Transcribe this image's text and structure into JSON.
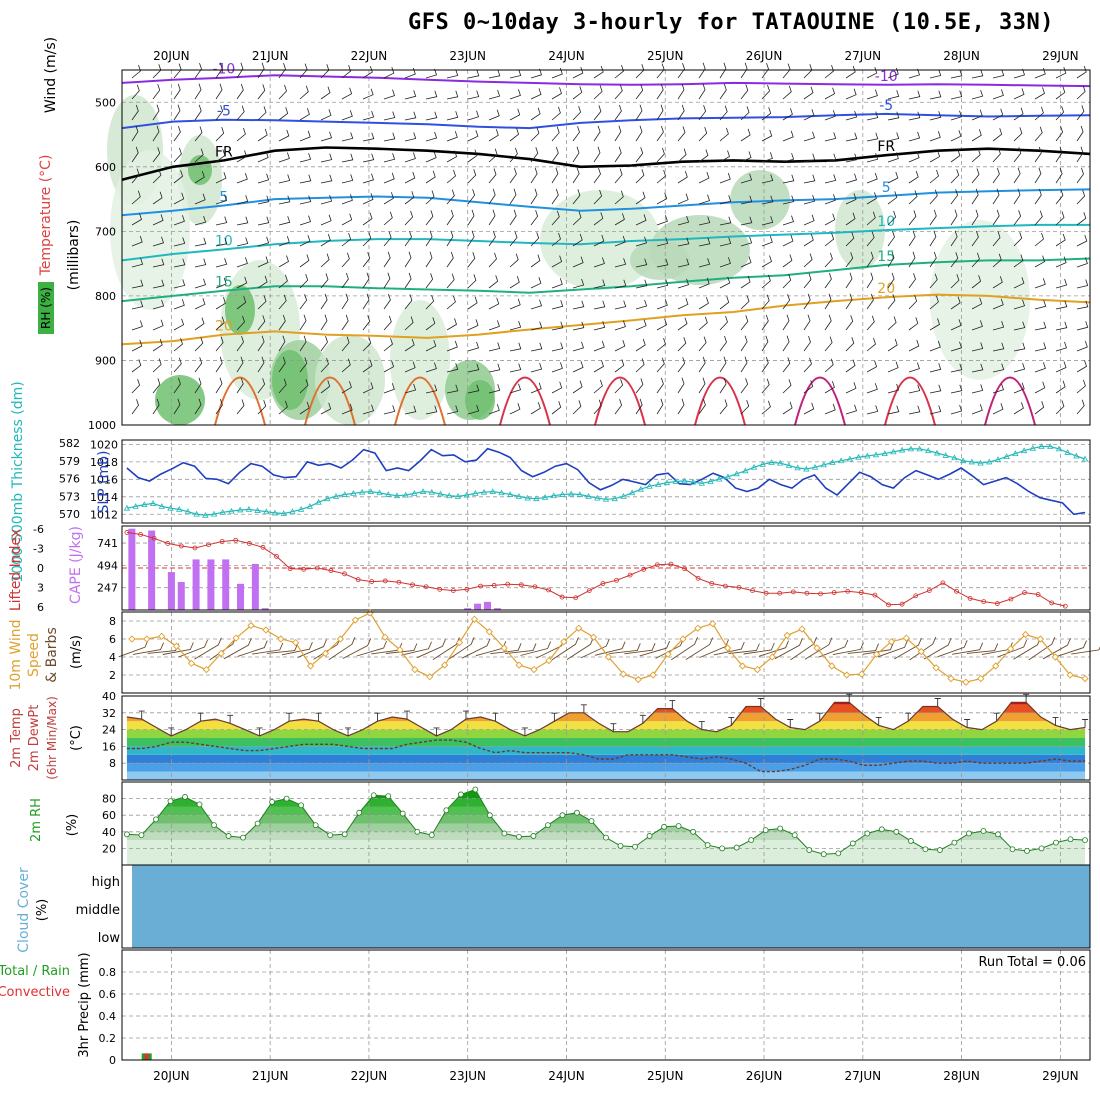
{
  "title": "GFS 0~10day 3-hourly for TATAOUINE (10.5E, 33N)",
  "dates": [
    "20JUN",
    "21JUN",
    "22JUN",
    "23JUN",
    "24JUN",
    "25JUN",
    "26JUN",
    "27JUN",
    "28JUN",
    "29JUN"
  ],
  "colors": {
    "rh_green": "#3cb043",
    "slp": "#1f3fbf",
    "thickness": "#22b8b8",
    "lifted_index": "#d03030",
    "cape": "#c070f0",
    "wind_speed": "#e0a030",
    "wind_barb": "#6b4a2a",
    "rh2m": "#20a020",
    "cloud": "#6aaed6",
    "precip_total": "#20a020",
    "precip_conv": "#e03030"
  },
  "chart_data": [
    {
      "type": "heatmap",
      "panel": "upper-air",
      "labels": {
        "wind": "Wind (m/s)",
        "temperature": "Temperature (°C)",
        "rh": "RH (%)",
        "y_axis": "(millibars)"
      },
      "y_ticks": [
        500,
        600,
        700,
        800,
        900,
        1000
      ],
      "ylim": [
        450,
        1000
      ],
      "y_scale": "linear, inverted",
      "temperature_contours": [
        {
          "label": "-10",
          "color": "#8a2be2",
          "pressure": [
            470,
            465,
            462,
            458,
            460,
            462,
            465,
            468,
            470,
            472,
            473,
            472,
            470,
            471,
            472,
            473,
            472,
            473,
            474,
            475
          ]
        },
        {
          "label": "-5",
          "color": "#3050e0",
          "pressure": [
            540,
            530,
            527,
            528,
            530,
            532,
            534,
            538,
            540,
            532,
            528,
            525,
            524,
            523,
            520,
            518,
            520,
            522,
            521,
            520
          ]
        },
        {
          "label": "FR",
          "color": "#000000",
          "pressure": [
            620,
            600,
            590,
            575,
            570,
            572,
            575,
            580,
            588,
            600,
            598,
            592,
            590,
            592,
            590,
            582,
            575,
            572,
            575,
            580
          ]
        },
        {
          "label": "5",
          "color": "#2090e0",
          "pressure": [
            675,
            668,
            660,
            650,
            648,
            646,
            648,
            655,
            662,
            668,
            665,
            660,
            655,
            652,
            650,
            645,
            640,
            638,
            636,
            635
          ]
        },
        {
          "label": "10",
          "color": "#20b8c0",
          "pressure": [
            745,
            735,
            728,
            720,
            715,
            712,
            712,
            715,
            718,
            720,
            715,
            712,
            708,
            705,
            702,
            698,
            695,
            692,
            690,
            690
          ]
        },
        {
          "label": "15",
          "color": "#20b080",
          "pressure": [
            808,
            800,
            792,
            785,
            785,
            788,
            790,
            792,
            795,
            790,
            785,
            778,
            772,
            768,
            760,
            752,
            748,
            745,
            745,
            742
          ]
        },
        {
          "label": "20",
          "color": "#e0a020",
          "pressure": [
            875,
            870,
            860,
            855,
            860,
            862,
            865,
            860,
            852,
            845,
            838,
            830,
            825,
            815,
            808,
            802,
            798,
            800,
            806,
            810
          ]
        }
      ]
    },
    {
      "type": "line",
      "panel": "slp-thickness",
      "labels": {
        "slp": "SLP (mb)",
        "thickness": "1000-500mb Thickness (dm)"
      },
      "slp_ticks": [
        1012,
        1014,
        1016,
        1018,
        1020
      ],
      "thickness_ticks": [
        570,
        573,
        576,
        579,
        582
      ],
      "slp": [
        1017.3,
        1016.2,
        1015.8,
        1016.6,
        1017.2,
        1017.9,
        1017.5,
        1016.1,
        1016.0,
        1015.5,
        1016.8,
        1017.8,
        1017.5,
        1016.5,
        1016.2,
        1016.3,
        1018.0,
        1017.6,
        1017.8,
        1017.3,
        1018.2,
        1019.4,
        1019.0,
        1017.0,
        1017.3,
        1017.0,
        1018.1,
        1019.4,
        1018.7,
        1018.8,
        1018.0,
        1018.2,
        1019.5,
        1019.1,
        1018.5,
        1017.0,
        1016.3,
        1016.8,
        1017.5,
        1017.8,
        1017.1,
        1015.6,
        1014.8,
        1015.3,
        1016.0,
        1015.7,
        1015.4,
        1016.5,
        1016.7,
        1015.5,
        1015.4,
        1016.0,
        1016.7,
        1016.2,
        1015.0,
        1014.6,
        1015.0,
        1016.0,
        1015.4,
        1015.0,
        1016.0,
        1016.5,
        1015.0,
        1014.2,
        1015.5,
        1016.8,
        1016.3,
        1015.4,
        1015.0,
        1016.2,
        1017.0,
        1016.5,
        1016.0,
        1016.6,
        1017.3,
        1016.4,
        1015.4,
        1015.8,
        1016.2,
        1015.5,
        1014.6,
        1013.9,
        1013.6,
        1013.3,
        1012.0,
        1012.2
      ],
      "thickness": [
        571.0,
        571.3,
        571.6,
        571.8,
        571.3,
        571.0,
        570.8,
        570.4,
        570.0,
        569.8,
        570.0,
        570.3,
        570.5,
        570.7,
        570.8,
        570.6,
        570.4,
        570.2,
        570.1,
        570.4,
        570.8,
        571.3,
        572.0,
        572.6,
        573.0,
        573.3,
        573.5,
        573.7,
        573.8,
        573.6,
        573.3,
        573.1,
        573.2,
        573.5,
        573.8,
        573.7,
        573.4,
        573.1,
        573.0,
        573.2,
        573.5,
        573.7,
        573.8,
        573.6,
        573.3,
        573.0,
        572.7,
        572.6,
        572.8,
        573.1,
        573.3,
        573.4,
        573.3,
        573.0,
        572.7,
        572.5,
        572.6,
        573.0,
        573.6,
        574.2,
        574.7,
        575.0,
        575.3,
        575.5,
        575.6,
        575.4,
        575.2,
        575.5,
        575.9,
        576.3,
        576.8,
        577.3,
        577.9,
        578.4,
        578.7,
        578.6,
        578.2,
        577.8,
        577.6,
        577.9,
        578.3,
        578.7,
        579.0,
        579.3,
        579.6,
        579.8,
        580.0,
        580.2,
        580.5,
        580.8,
        581.0,
        581.0,
        580.7,
        580.3,
        579.9,
        579.5,
        579.0,
        578.8,
        578.6,
        578.8,
        579.2,
        579.7,
        580.2,
        580.7,
        581.1,
        581.4,
        581.4,
        581.0,
        580.4,
        579.8,
        579.3
      ]
    },
    {
      "type": "line",
      "panel": "stability",
      "labels": {
        "lifted_index": "Lifted Index",
        "cape": "CAPE (J/kg)"
      },
      "li_ticks": [
        -6,
        -3,
        0,
        3,
        6
      ],
      "cape_ticks": [
        247,
        494,
        741
      ],
      "lifted_index": [
        -5.5,
        -5.2,
        -4.6,
        -3.8,
        -3.4,
        -3.1,
        -3.6,
        -4.1,
        -4.3,
        -3.8,
        -3.2,
        -1.8,
        0.1,
        0.2,
        0.0,
        0.4,
        0.9,
        1.8,
        2.1,
        2.0,
        2.2,
        2.6,
        2.9,
        3.3,
        3.5,
        3.3,
        2.8,
        2.7,
        2.5,
        2.6,
        2.9,
        3.4,
        4.5,
        4.6,
        3.5,
        2.4,
        1.9,
        1.1,
        0.2,
        -0.5,
        -0.6,
        0.1,
        1.6,
        2.4,
        2.8,
        3.0,
        3.5,
        3.9,
        3.9,
        3.7,
        3.9,
        4.0,
        3.8,
        3.6,
        3.8,
        4.2,
        5.7,
        5.6,
        4.3,
        3.5,
        2.3,
        3.6,
        4.7,
        5.2,
        5.5,
        4.8,
        3.8,
        4.1,
        5.4,
        5.9
      ],
      "cape": [
        [
          19.6,
          900
        ],
        [
          19.8,
          880
        ],
        [
          20.0,
          420
        ],
        [
          20.1,
          310
        ],
        [
          20.25,
          560
        ],
        [
          20.4,
          560
        ],
        [
          20.55,
          560
        ],
        [
          20.7,
          290
        ],
        [
          20.85,
          510
        ],
        [
          20.95,
          20
        ],
        [
          23.0,
          20
        ],
        [
          23.1,
          70
        ],
        [
          23.2,
          90
        ],
        [
          23.3,
          20
        ]
      ]
    },
    {
      "type": "line",
      "panel": "wind10m",
      "labels": {
        "speed": "10m Wind Speed & Barbs",
        "unit": "(m/s)"
      },
      "ylim": [
        0,
        9
      ],
      "y_ticks": [
        2,
        4,
        6,
        8
      ],
      "speed": [
        6.0,
        6.0,
        6.3,
        5.2,
        3.3,
        2.6,
        4.4,
        6.1,
        7.5,
        7.0,
        6.0,
        5.6,
        3.0,
        4.4,
        6.0,
        8.1,
        8.9,
        6.2,
        4.8,
        2.6,
        1.8,
        3.1,
        5.6,
        8.2,
        6.8,
        5.0,
        3.1,
        2.6,
        3.6,
        5.7,
        7.2,
        6.2,
        4.0,
        2.1,
        1.5,
        2.0,
        4.3,
        6.0,
        7.2,
        7.7,
        5.0,
        3.0,
        2.6,
        4.0,
        6.4,
        7.1,
        5.0,
        3.0,
        2.0,
        2.1,
        4.3,
        5.7,
        6.1,
        4.6,
        2.8,
        1.6,
        1.2,
        1.6,
        3.0,
        4.9,
        6.5,
        6.0,
        4.0,
        2.0,
        1.6
      ]
    },
    {
      "type": "area",
      "panel": "temp2m",
      "labels": {
        "temp": "2m Temp",
        "dewpt": "2m DewPt",
        "minmax": "(6hr Min/Max)",
        "unit": "(°C)"
      },
      "ylim": [
        0,
        40
      ],
      "y_ticks": [
        8,
        16,
        24,
        32,
        40
      ],
      "temp": [
        30,
        29,
        25,
        21,
        24,
        28,
        29,
        27,
        24,
        21,
        24,
        28,
        29,
        28,
        24,
        21,
        24,
        28,
        30,
        29,
        25,
        21,
        24,
        29,
        30,
        28,
        24,
        21,
        24,
        28,
        32,
        32,
        27,
        23,
        23,
        27,
        34,
        34,
        28,
        24,
        23,
        26,
        35,
        35,
        29,
        25,
        24,
        28,
        37,
        37,
        31,
        26,
        24,
        28,
        35,
        35,
        29,
        25,
        24,
        28,
        37,
        37,
        30,
        26,
        24,
        25
      ],
      "dewpt": [
        15,
        15,
        16,
        18,
        18,
        17,
        16,
        15,
        14,
        14,
        15,
        16,
        17,
        17,
        17,
        16,
        15,
        15,
        15,
        17,
        18,
        19,
        19,
        18,
        15,
        13,
        14,
        13,
        13,
        13,
        13,
        12,
        10,
        10,
        12,
        12,
        12,
        12,
        11,
        10,
        11,
        10,
        8,
        4,
        4,
        5,
        7,
        10,
        10,
        9,
        7,
        7,
        8,
        9,
        9,
        8,
        8,
        9,
        8,
        8,
        8,
        8,
        9,
        10,
        9,
        9
      ]
    },
    {
      "type": "area",
      "panel": "rh2m",
      "labels": {
        "rh": "2m RH",
        "unit": "(%)"
      },
      "ylim": [
        0,
        100
      ],
      "y_ticks": [
        20,
        40,
        60,
        80
      ],
      "rh": [
        37,
        36,
        55,
        77,
        82,
        73,
        48,
        35,
        33,
        50,
        76,
        80,
        72,
        48,
        36,
        37,
        63,
        84,
        83,
        62,
        40,
        36,
        66,
        85,
        91,
        60,
        38,
        34,
        35,
        48,
        60,
        63,
        53,
        33,
        23,
        22,
        35,
        46,
        47,
        40,
        24,
        20,
        21,
        30,
        42,
        44,
        36,
        18,
        13,
        14,
        26,
        38,
        43,
        40,
        29,
        19,
        18,
        27,
        38,
        41,
        37,
        19,
        17,
        20,
        27,
        31,
        30
      ]
    },
    {
      "type": "heatmap",
      "panel": "cloud",
      "labels": {
        "title": "Cloud Cover",
        "unit": "(%)",
        "levels": [
          "high",
          "middle",
          "low"
        ]
      }
    },
    {
      "type": "bar",
      "panel": "precip",
      "labels": {
        "total": "Total / Rain",
        "conv": "Convective",
        "axis": "3hr Precip (mm)",
        "run_total": "Run Total = 0.06"
      },
      "ylim": [
        0,
        1.0
      ],
      "y_ticks": [
        "0",
        "0.2",
        "0.4",
        "0.6",
        "0.8"
      ],
      "total": [
        [
          19.75,
          0.06
        ]
      ],
      "convective": [
        [
          19.75,
          0.06
        ]
      ]
    }
  ]
}
